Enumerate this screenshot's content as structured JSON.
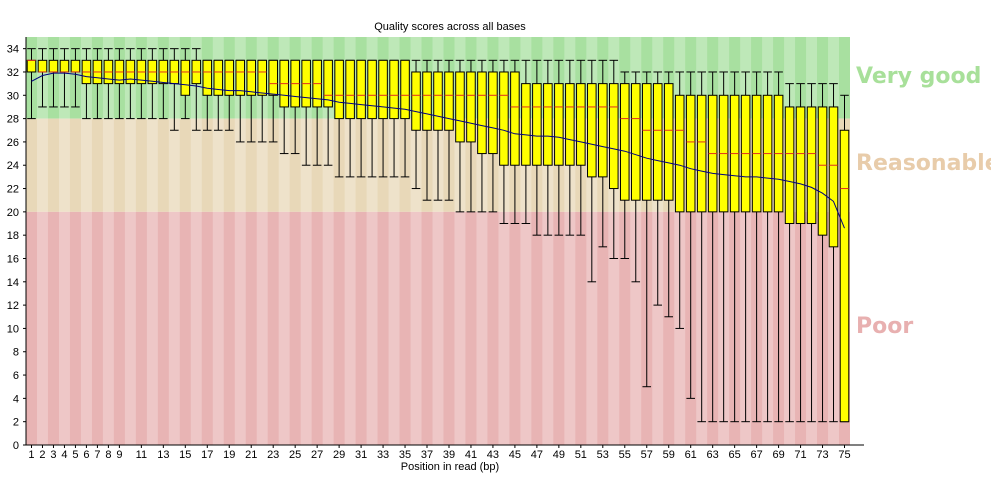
{
  "chart_data": {
    "type": "box",
    "title": "Quality scores across all bases",
    "xlabel": "Position in read (bp)",
    "ylabel": "",
    "xlim": [
      1,
      75
    ],
    "ylim": [
      0,
      35
    ],
    "yticks": [
      0,
      2,
      4,
      6,
      8,
      10,
      12,
      14,
      16,
      18,
      20,
      22,
      24,
      26,
      28,
      30,
      32,
      34
    ],
    "xtick_labels": [
      "1",
      "2",
      "3",
      "4",
      "5",
      "6",
      "7",
      "8",
      "9",
      "11",
      "13",
      "15",
      "17",
      "19",
      "21",
      "23",
      "25",
      "27",
      "29",
      "31",
      "33",
      "35",
      "37",
      "39",
      "41",
      "43",
      "45",
      "47",
      "49",
      "51",
      "53",
      "55",
      "57",
      "59",
      "61",
      "63",
      "65",
      "67",
      "69",
      "71",
      "73",
      "75"
    ],
    "xtick_positions": [
      1,
      2,
      3,
      4,
      5,
      6,
      7,
      8,
      9,
      11,
      13,
      15,
      17,
      19,
      21,
      23,
      25,
      27,
      29,
      31,
      33,
      35,
      37,
      39,
      41,
      43,
      45,
      47,
      49,
      51,
      53,
      55,
      57,
      59,
      61,
      63,
      65,
      67,
      69,
      71,
      73,
      75
    ],
    "zones": [
      {
        "name": "Very good",
        "from": 28,
        "to": 35,
        "color": "#a8e0a0",
        "label_color": "#a8e09a"
      },
      {
        "name": "Reasonable",
        "from": 20,
        "to": 28,
        "color": "#e8d8b8",
        "label_color": "#e8ccaa"
      },
      {
        "name": "Poor",
        "from": 0,
        "to": 20,
        "color": "#e8b4b4",
        "label_color": "#e8b0b0"
      }
    ],
    "box_color": "#ffff00",
    "median_color": "#e03020",
    "mean_color": "#000080",
    "series": [
      {
        "name": "q1",
        "values": [
          32,
          32,
          32,
          32,
          32,
          31,
          31,
          31,
          31,
          31,
          31,
          31,
          31,
          31,
          30,
          31,
          30,
          30,
          30,
          30,
          30,
          30,
          30,
          29,
          29,
          29,
          29,
          29,
          28,
          28,
          28,
          28,
          28,
          28,
          28,
          27,
          27,
          27,
          27,
          26,
          26,
          25,
          25,
          24,
          24,
          24,
          24,
          24,
          24,
          24,
          24,
          23,
          23,
          22,
          21,
          21,
          21,
          21,
          21,
          20,
          20,
          20,
          20,
          20,
          20,
          20,
          20,
          20,
          20,
          19,
          19,
          19,
          18,
          17,
          2
        ]
      },
      {
        "name": "median",
        "values": [
          33,
          32,
          32,
          32,
          32,
          32,
          32,
          32,
          32,
          32,
          32,
          32,
          32,
          32,
          32,
          32,
          32,
          32,
          32,
          32,
          32,
          32,
          31,
          31,
          31,
          31,
          31,
          30,
          30,
          30,
          30,
          30,
          30,
          30,
          30,
          30,
          30,
          30,
          30,
          30,
          30,
          30,
          30,
          30,
          29,
          29,
          29,
          29,
          29,
          29,
          29,
          29,
          29,
          29,
          28,
          28,
          27,
          27,
          27,
          27,
          26,
          26,
          25,
          25,
          25,
          25,
          25,
          25,
          25,
          25,
          25,
          25,
          24,
          24,
          22
        ]
      },
      {
        "name": "q3",
        "values": [
          33,
          33,
          33,
          33,
          33,
          33,
          33,
          33,
          33,
          33,
          33,
          33,
          33,
          33,
          33,
          33,
          33,
          33,
          33,
          33,
          33,
          33,
          33,
          33,
          33,
          33,
          33,
          33,
          33,
          33,
          33,
          33,
          33,
          33,
          33,
          32,
          32,
          32,
          32,
          32,
          32,
          32,
          32,
          32,
          32,
          31,
          31,
          31,
          31,
          31,
          31,
          31,
          31,
          31,
          31,
          31,
          31,
          31,
          31,
          30,
          30,
          30,
          30,
          30,
          30,
          30,
          30,
          30,
          30,
          29,
          29,
          29,
          29,
          29,
          27
        ]
      },
      {
        "name": "whisker_low",
        "values": [
          28,
          29,
          29,
          29,
          29,
          28,
          28,
          28,
          28,
          28,
          28,
          28,
          28,
          27,
          28,
          27,
          27,
          27,
          27,
          26,
          26,
          26,
          26,
          25,
          25,
          24,
          24,
          24,
          23,
          23,
          23,
          23,
          23,
          23,
          23,
          22,
          21,
          21,
          21,
          20,
          20,
          20,
          20,
          19,
          19,
          19,
          18,
          18,
          18,
          18,
          18,
          14,
          17,
          16,
          16,
          14,
          5,
          12,
          11,
          10,
          4,
          2,
          2,
          2,
          2,
          2,
          2,
          2,
          2,
          2,
          2,
          2,
          2,
          2,
          2
        ]
      },
      {
        "name": "whisker_high",
        "values": [
          34,
          34,
          34,
          34,
          34,
          34,
          34,
          34,
          34,
          34,
          34,
          34,
          34,
          34,
          34,
          34,
          33,
          33,
          33,
          33,
          33,
          33,
          33,
          33,
          33,
          33,
          33,
          33,
          33,
          33,
          33,
          33,
          33,
          33,
          33,
          33,
          33,
          33,
          33,
          33,
          33,
          33,
          33,
          33,
          33,
          33,
          33,
          33,
          33,
          33,
          33,
          33,
          33,
          33,
          32,
          32,
          32,
          32,
          32,
          32,
          32,
          32,
          32,
          32,
          32,
          32,
          32,
          32,
          32,
          31,
          31,
          31,
          31,
          31,
          30
        ]
      },
      {
        "name": "mean",
        "values": [
          31.2,
          31.7,
          31.9,
          31.9,
          31.8,
          31.6,
          31.5,
          31.4,
          31.3,
          31.4,
          31.3,
          31.2,
          31.1,
          31.0,
          30.9,
          30.8,
          30.6,
          30.5,
          30.4,
          30.4,
          30.3,
          30.2,
          30.1,
          30.0,
          29.9,
          29.8,
          29.7,
          29.6,
          29.4,
          29.3,
          29.2,
          29.1,
          29.0,
          28.9,
          28.8,
          28.6,
          28.4,
          28.2,
          28.0,
          27.8,
          27.6,
          27.4,
          27.2,
          27.0,
          26.7,
          26.6,
          26.5,
          26.5,
          26.4,
          26.2,
          26.0,
          25.8,
          25.6,
          25.4,
          25.2,
          24.9,
          24.6,
          24.4,
          24.2,
          24.0,
          23.7,
          23.5,
          23.3,
          23.2,
          23.1,
          23.0,
          23.0,
          22.9,
          22.8,
          22.6,
          22.4,
          22.1,
          21.6,
          20.9,
          18.6
        ]
      }
    ]
  }
}
